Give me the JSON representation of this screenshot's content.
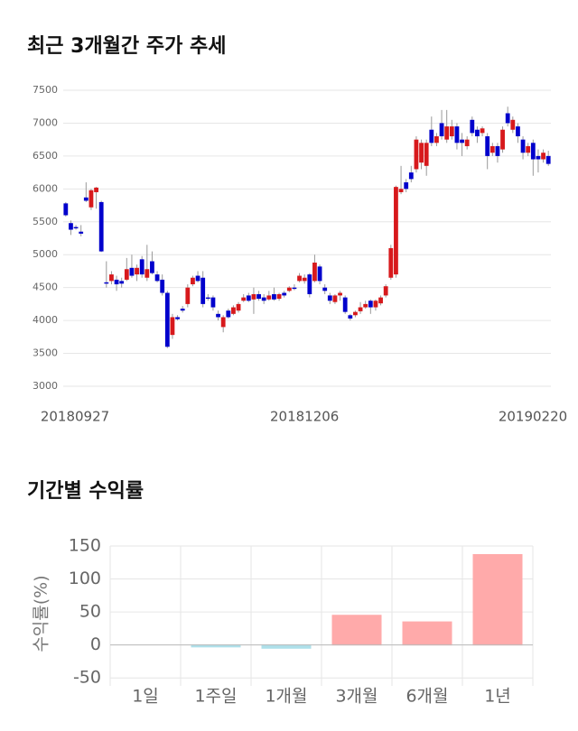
{
  "chart_data": [
    {
      "type": "candlestick",
      "title": "최근 3개월간 주가 추세",
      "categories": [
        "20180927",
        null,
        null,
        null,
        null,
        null,
        null,
        null,
        null,
        null,
        null,
        null,
        null,
        null,
        null,
        null,
        null,
        null,
        null,
        null,
        null,
        null,
        null,
        null,
        null,
        null,
        null,
        null,
        null,
        null,
        null,
        null,
        null,
        null,
        null,
        null,
        null,
        null,
        null,
        null,
        null,
        null,
        null,
        null,
        null,
        null,
        null,
        "20181206",
        null,
        null,
        null,
        null,
        null,
        null,
        null,
        null,
        null,
        null,
        null,
        null,
        null,
        null,
        null,
        null,
        null,
        null,
        null,
        null,
        null,
        null,
        null,
        null,
        null,
        null,
        null,
        null,
        null,
        null,
        null,
        null,
        null,
        null,
        null,
        null,
        null,
        null,
        null,
        null,
        null,
        null,
        null,
        null,
        "20190220",
        null,
        null,
        null
      ],
      "ohlc": [
        [
          5780,
          5800,
          5580,
          5600
        ],
        [
          5480,
          5520,
          5300,
          5380
        ],
        [
          5420,
          5450,
          5380,
          5400
        ],
        [
          5350,
          5450,
          5280,
          5320
        ],
        [
          5870,
          6100,
          5800,
          5820
        ],
        [
          5720,
          6000,
          5680,
          5980
        ],
        [
          5950,
          6030,
          5700,
          6020
        ],
        [
          5800,
          5820,
          5040,
          5050
        ],
        [
          4580,
          4900,
          4500,
          4560
        ],
        [
          4600,
          4750,
          4550,
          4700
        ],
        [
          4620,
          4680,
          4450,
          4550
        ],
        [
          4600,
          4650,
          4500,
          4560
        ],
        [
          4620,
          4950,
          4600,
          4780
        ],
        [
          4800,
          5000,
          4650,
          4680
        ],
        [
          4700,
          4850,
          4600,
          4800
        ],
        [
          4930,
          4980,
          4650,
          4700
        ],
        [
          4650,
          5150,
          4600,
          4780
        ],
        [
          4900,
          5050,
          4700,
          4720
        ],
        [
          4700,
          4750,
          4580,
          4600
        ],
        [
          4620,
          4700,
          4380,
          4420
        ],
        [
          4420,
          4450,
          3580,
          3600
        ],
        [
          3780,
          4100,
          3720,
          4050
        ],
        [
          4050,
          4080,
          4000,
          4020
        ],
        [
          4180,
          4220,
          4120,
          4150
        ],
        [
          4250,
          4550,
          4200,
          4500
        ],
        [
          4550,
          4680,
          4520,
          4650
        ],
        [
          4680,
          4750,
          4580,
          4600
        ],
        [
          4650,
          4750,
          4200,
          4250
        ],
        [
          4350,
          4400,
          4300,
          4330
        ],
        [
          4350,
          4380,
          4150,
          4200
        ],
        [
          4100,
          4150,
          4000,
          4050
        ],
        [
          3900,
          4080,
          3820,
          4050
        ],
        [
          4150,
          4180,
          4030,
          4050
        ],
        [
          4100,
          4230,
          4080,
          4200
        ],
        [
          4150,
          4280,
          4120,
          4250
        ],
        [
          4300,
          4400,
          4280,
          4350
        ],
        [
          4380,
          4420,
          4280,
          4300
        ],
        [
          4320,
          4500,
          4100,
          4400
        ],
        [
          4400,
          4450,
          4300,
          4330
        ],
        [
          4350,
          4400,
          4250,
          4300
        ],
        [
          4320,
          4450,
          4300,
          4380
        ],
        [
          4400,
          4500,
          4300,
          4320
        ],
        [
          4330,
          4420,
          4300,
          4400
        ],
        [
          4420,
          4450,
          4350,
          4380
        ],
        [
          4450,
          4520,
          4430,
          4500
        ],
        [
          4500,
          4550,
          4460,
          4480
        ],
        [
          4600,
          4720,
          4580,
          4680
        ],
        [
          4600,
          4700,
          4560,
          4650
        ],
        [
          4700,
          4720,
          4350,
          4400
        ],
        [
          4600,
          5000,
          4580,
          4880
        ],
        [
          4820,
          4850,
          4550,
          4600
        ],
        [
          4500,
          4550,
          4400,
          4450
        ],
        [
          4380,
          4420,
          4250,
          4300
        ],
        [
          4280,
          4400,
          4250,
          4380
        ],
        [
          4380,
          4450,
          4300,
          4420
        ],
        [
          4350,
          4380,
          4100,
          4130
        ],
        [
          4080,
          4100,
          4000,
          4030
        ],
        [
          4080,
          4150,
          4050,
          4130
        ],
        [
          4140,
          4280,
          4100,
          4200
        ],
        [
          4200,
          4300,
          4180,
          4250
        ],
        [
          4300,
          4320,
          4100,
          4200
        ],
        [
          4200,
          4320,
          4150,
          4300
        ],
        [
          4260,
          4380,
          4230,
          4350
        ],
        [
          4380,
          4550,
          4350,
          4520
        ],
        [
          4650,
          5150,
          4620,
          5100
        ],
        [
          4700,
          6050,
          4650,
          6030
        ],
        [
          5950,
          6350,
          5920,
          6000
        ],
        [
          6100,
          6150,
          5950,
          6000
        ],
        [
          6250,
          6350,
          6100,
          6150
        ],
        [
          6300,
          6800,
          6250,
          6750
        ],
        [
          6400,
          6750,
          6300,
          6700
        ],
        [
          6350,
          6750,
          6200,
          6700
        ],
        [
          6900,
          7100,
          6650,
          6700
        ],
        [
          6700,
          6850,
          6650,
          6800
        ],
        [
          7000,
          7200,
          6750,
          6800
        ],
        [
          6750,
          7200,
          6700,
          6950
        ],
        [
          6800,
          7050,
          6750,
          6950
        ],
        [
          6950,
          7000,
          6600,
          6700
        ],
        [
          6750,
          6850,
          6500,
          6700
        ],
        [
          6650,
          6800,
          6600,
          6750
        ],
        [
          7050,
          7100,
          6800,
          6850
        ],
        [
          6900,
          6950,
          6700,
          6800
        ],
        [
          6850,
          6950,
          6800,
          6920
        ],
        [
          6800,
          6850,
          6300,
          6500
        ],
        [
          6550,
          6700,
          6500,
          6650
        ],
        [
          6650,
          6700,
          6400,
          6500
        ],
        [
          6600,
          6950,
          6550,
          6900
        ],
        [
          7150,
          7250,
          6950,
          7000
        ],
        [
          6900,
          7100,
          6850,
          7050
        ],
        [
          6950,
          7000,
          6700,
          6800
        ],
        [
          6750,
          6800,
          6450,
          6550
        ],
        [
          6550,
          6700,
          6500,
          6650
        ],
        [
          6700,
          6750,
          6200,
          6450
        ],
        [
          6500,
          6600,
          6250,
          6450
        ],
        [
          6450,
          6600,
          6400,
          6550
        ],
        [
          6500,
          6580,
          6350,
          6380
        ]
      ],
      "up_color": "#d7191c",
      "down_color": "#0000cc",
      "ylim": [
        3000,
        7500
      ],
      "yticks": [
        3000,
        3500,
        4000,
        4500,
        5000,
        5500,
        6000,
        6500,
        7000,
        7500
      ],
      "grid": true
    },
    {
      "type": "bar",
      "title": "기간별 수익률",
      "ylabel": "수익률(%)",
      "categories": [
        "1일",
        "1주일",
        "1개월",
        "3개월",
        "6개월",
        "1년"
      ],
      "values": [
        0,
        -3,
        -5,
        45,
        35,
        137
      ],
      "colors": [
        "#ffaaaa",
        "#aee0ea",
        "#aee0ea",
        "#ffaaaa",
        "#ffaaaa",
        "#ffaaaa"
      ],
      "ylim": [
        -62,
        150
      ],
      "yticks": [
        -50,
        0,
        50,
        100,
        150
      ],
      "grid": true
    }
  ]
}
